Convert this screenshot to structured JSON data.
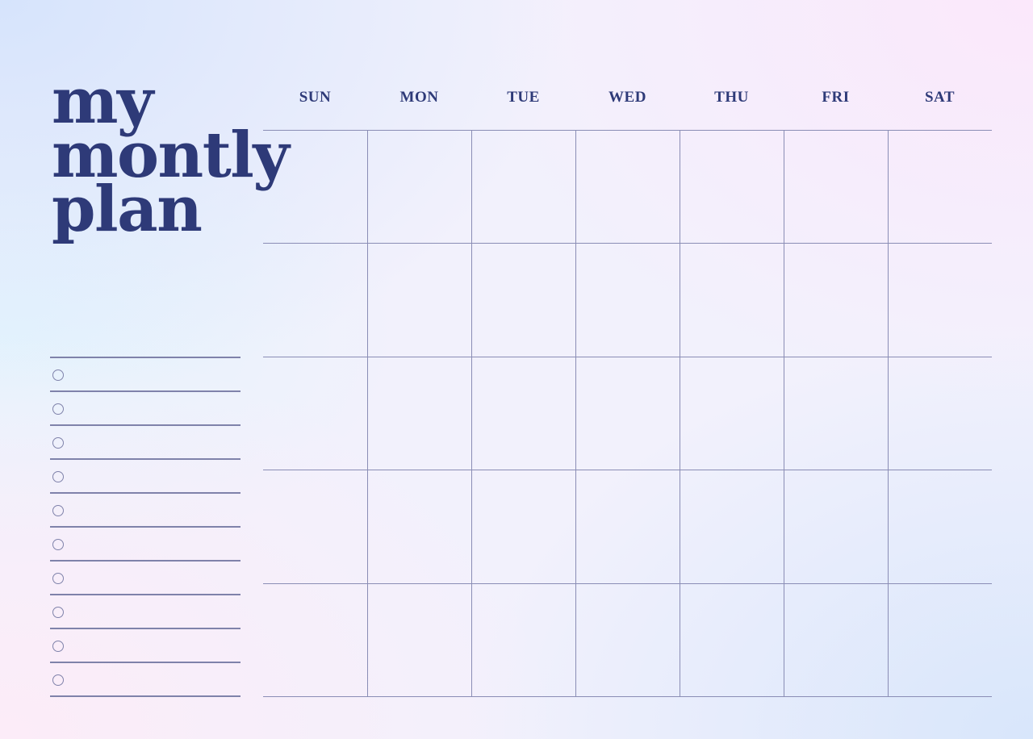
{
  "title": {
    "lines": [
      "my",
      "montly",
      "plan"
    ]
  },
  "weekdays": [
    "SUN",
    "MON",
    "TUE",
    "WED",
    "THU",
    "FRI",
    "SAT"
  ],
  "calendar": {
    "weeks": 5,
    "days_per_week": 7
  },
  "checklist": {
    "item_count": 10,
    "items": [
      "",
      "",
      "",
      "",
      "",
      "",
      "",
      "",
      "",
      ""
    ]
  },
  "colors": {
    "ink": "#2e3a78",
    "grid_line": "#8a8db5",
    "background_blue": "#d6e4fc",
    "background_pink": "#fbe8fb"
  }
}
